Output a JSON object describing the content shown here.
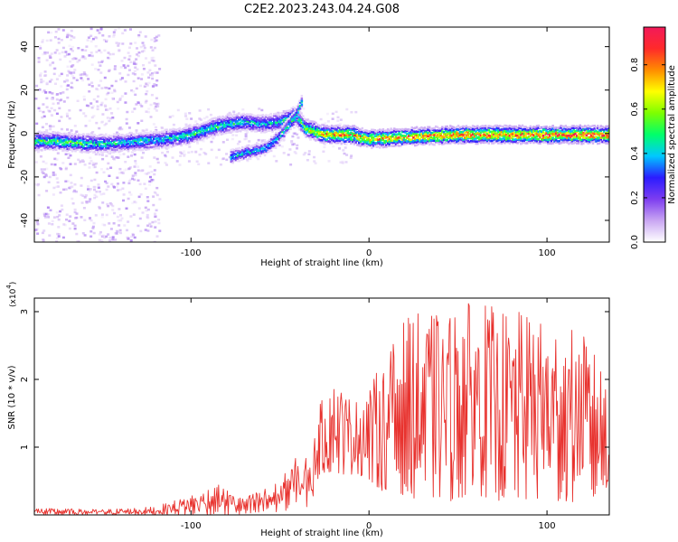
{
  "title": "C2E2.2023.243.04.24.G08",
  "colors": {
    "snr_line": "#e8322e",
    "spectrogram_low": "#c9a6f2",
    "spectrogram_high": "#f21a5a"
  },
  "chart_data": [
    {
      "type": "heatmap",
      "name": "spectrogram",
      "xlabel": "Height of straight line (km)",
      "ylabel": "Frequency (Hz)",
      "xlim": [
        -188,
        135
      ],
      "ylim": [
        -50,
        49
      ],
      "xticks": [
        -100,
        0,
        100
      ],
      "yticks": [
        -40,
        -20,
        0,
        20,
        40
      ],
      "colorbar": {
        "label": "Normalized spectral amplitude",
        "range": [
          0.0,
          0.97
        ],
        "ticks": [
          "0.0",
          "0.2",
          "0.4",
          "0.6",
          "0.8"
        ],
        "colormap": [
          "#ffffff",
          "#c9a6f2",
          "#7d3df0",
          "#2b1cff",
          "#00c8ff",
          "#00ff6a",
          "#7dff00",
          "#ffff00",
          "#ff8c00",
          "#ff2a2a",
          "#f21a5a"
        ]
      },
      "ridge": [
        {
          "x": -188,
          "f": -3,
          "a": 0.55
        },
        {
          "x": -175,
          "f": -3,
          "a": 0.55
        },
        {
          "x": -160,
          "f": -4,
          "a": 0.5
        },
        {
          "x": -145,
          "f": -4,
          "a": 0.45
        },
        {
          "x": -130,
          "f": -3,
          "a": 0.45
        },
        {
          "x": -115,
          "f": -2,
          "a": 0.45
        },
        {
          "x": -100,
          "f": 0,
          "a": 0.5
        },
        {
          "x": -90,
          "f": 3,
          "a": 0.5
        },
        {
          "x": -80,
          "f": 5,
          "a": 0.5
        },
        {
          "x": -70,
          "f": 6,
          "a": 0.45
        },
        {
          "x": -60,
          "f": 5,
          "a": 0.4
        },
        {
          "x": -50,
          "f": 6,
          "a": 0.45
        },
        {
          "x": -42,
          "f": 9,
          "a": 0.5
        },
        {
          "x": -36,
          "f": 3,
          "a": 0.6
        },
        {
          "x": -25,
          "f": 0,
          "a": 0.8
        },
        {
          "x": -10,
          "f": 0,
          "a": 0.8
        },
        {
          "x": 0,
          "f": -2,
          "a": 0.75
        },
        {
          "x": 20,
          "f": -1,
          "a": 0.8
        },
        {
          "x": 50,
          "f": 0,
          "a": 0.85
        },
        {
          "x": 80,
          "f": 0,
          "a": 0.85
        },
        {
          "x": 110,
          "f": 0,
          "a": 0.9
        },
        {
          "x": 135,
          "f": 0,
          "a": 0.85
        }
      ],
      "secondary_branch": [
        {
          "x": -78,
          "f": -10,
          "a": 0.45
        },
        {
          "x": -68,
          "f": -8,
          "a": 0.45
        },
        {
          "x": -58,
          "f": -6,
          "a": 0.45
        },
        {
          "x": -50,
          "f": 0,
          "a": 0.45
        },
        {
          "x": -42,
          "f": 8,
          "a": 0.5
        },
        {
          "x": -38,
          "f": 16,
          "a": 0.45
        }
      ]
    },
    {
      "type": "line",
      "name": "snr",
      "xlabel": "Height of straight line (km)",
      "ylabel": "SNR (10 * v/v)",
      "yscale_label": "(x10",
      "yscale_exponent": "4",
      "yscale_suffix": ")",
      "xlim": [
        -188,
        135
      ],
      "ylim": [
        0,
        3.2
      ],
      "xticks": [
        -100,
        0,
        100
      ],
      "yticks": [
        1,
        2,
        3
      ],
      "envelope": [
        {
          "x": -188,
          "low": 0.0,
          "high": 0.1
        },
        {
          "x": -150,
          "low": 0.0,
          "high": 0.08
        },
        {
          "x": -120,
          "low": 0.0,
          "high": 0.12
        },
        {
          "x": -100,
          "low": 0.0,
          "high": 0.3
        },
        {
          "x": -85,
          "low": 0.0,
          "high": 0.45
        },
        {
          "x": -70,
          "low": 0.0,
          "high": 0.25
        },
        {
          "x": -60,
          "low": 0.0,
          "high": 0.4
        },
        {
          "x": -50,
          "low": 0.05,
          "high": 0.5
        },
        {
          "x": -40,
          "low": 0.1,
          "high": 0.9
        },
        {
          "x": -33,
          "low": 0.1,
          "high": 0.85
        },
        {
          "x": -28,
          "low": 0.6,
          "high": 1.6
        },
        {
          "x": -20,
          "low": 0.6,
          "high": 2.1
        },
        {
          "x": -10,
          "low": 0.6,
          "high": 1.7
        },
        {
          "x": 0,
          "low": 0.5,
          "high": 1.9
        },
        {
          "x": 10,
          "low": 0.3,
          "high": 2.4
        },
        {
          "x": 20,
          "low": 0.3,
          "high": 2.9
        },
        {
          "x": 30,
          "low": 0.2,
          "high": 3.0
        },
        {
          "x": 45,
          "low": 0.2,
          "high": 3.0
        },
        {
          "x": 60,
          "low": 0.3,
          "high": 3.2
        },
        {
          "x": 75,
          "low": 0.2,
          "high": 3.0
        },
        {
          "x": 90,
          "low": 0.2,
          "high": 3.0
        },
        {
          "x": 105,
          "low": 0.2,
          "high": 2.8
        },
        {
          "x": 120,
          "low": 0.15,
          "high": 2.7
        },
        {
          "x": 135,
          "low": 0.3,
          "high": 2.0
        }
      ]
    }
  ]
}
